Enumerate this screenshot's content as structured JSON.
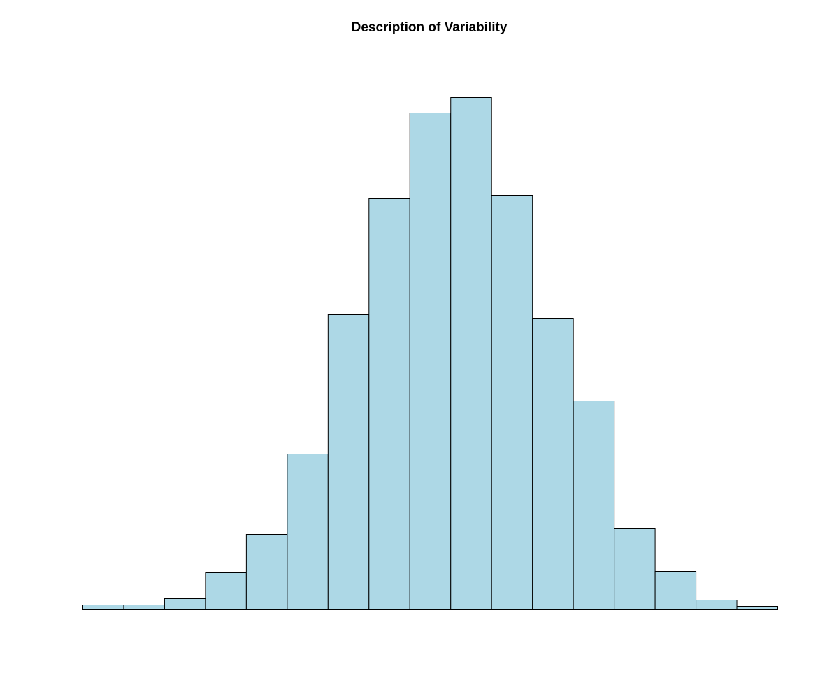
{
  "chart_data": {
    "type": "bar",
    "subtype": "histogram",
    "title": "Description of Variability",
    "xlabel": "",
    "ylabel": "",
    "axes_shown": false,
    "grid": false,
    "legend": "none",
    "bar_fill": "#add8e6",
    "bar_stroke": "#000000",
    "bins": 17,
    "values": [
      6,
      6,
      15,
      52,
      107,
      222,
      422,
      588,
      710,
      732,
      592,
      416,
      298,
      115,
      54,
      13,
      4
    ],
    "ylim": [
      0,
      760
    ]
  }
}
